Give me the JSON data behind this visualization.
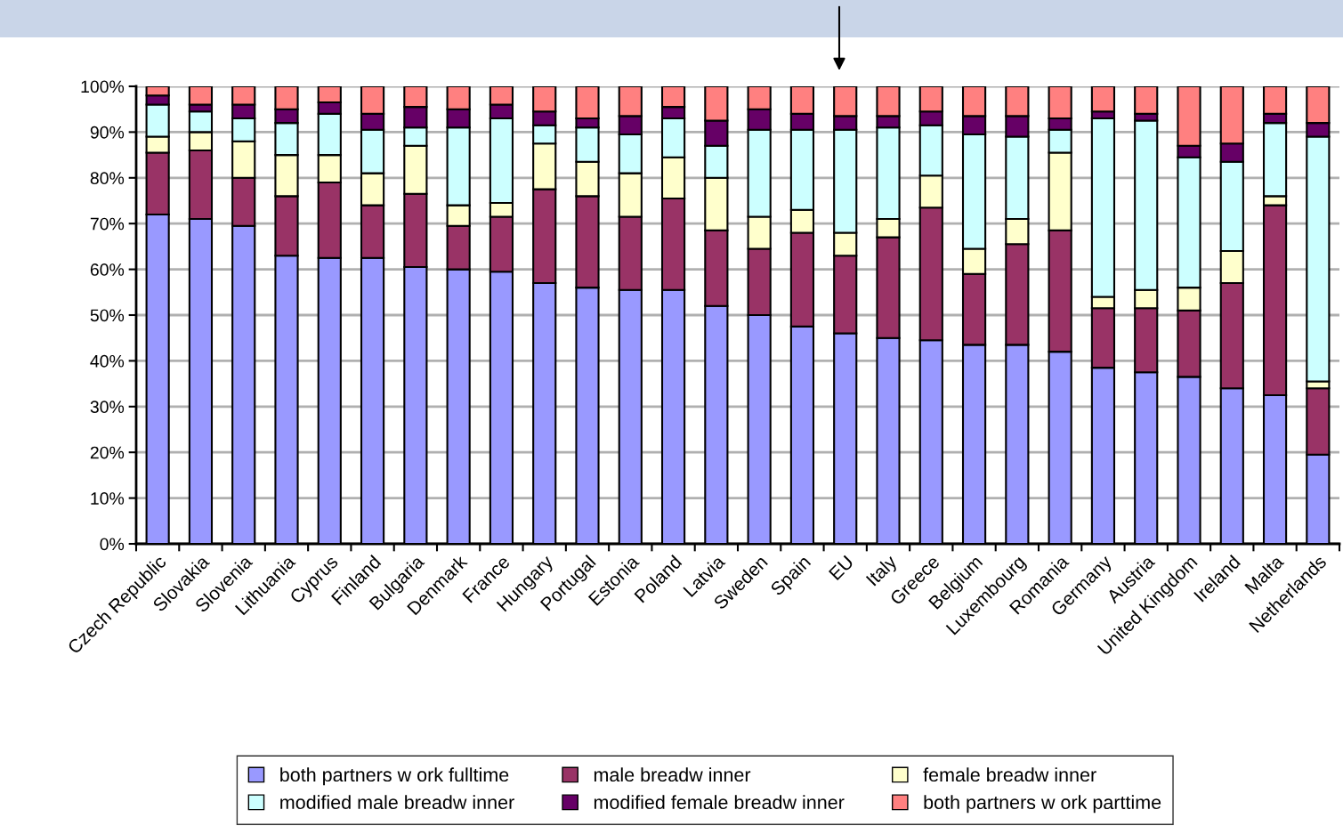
{
  "chart_data": {
    "type": "bar",
    "stacked": true,
    "categories": [
      "Czech Republic",
      "Slovakia",
      "Slovenia",
      "Lithuania",
      "Cyprus",
      "Finland",
      "Bulgaria",
      "Denmark",
      "France",
      "Hungary",
      "Portugal",
      "Estonia",
      "Poland",
      "Latvia",
      "Sweden",
      "Spain",
      "EU",
      "Italy",
      "Greece",
      "Belgium",
      "Luxembourg",
      "Romania",
      "Germany",
      "Austria",
      "United Kingdom",
      "Ireland",
      "Malta",
      "Netherlands"
    ],
    "series": [
      {
        "name": "both partners w ork fulltime",
        "color": "#9999ff",
        "values": [
          72,
          71,
          69.5,
          63,
          62.5,
          62.5,
          60.5,
          60,
          59.5,
          57,
          56,
          55.5,
          55.5,
          52,
          50,
          47.5,
          46,
          45,
          44.5,
          43.5,
          43.5,
          42,
          38.5,
          37.5,
          36.5,
          34,
          32.5,
          19.5
        ]
      },
      {
        "name": "male breadw inner",
        "color": "#993366",
        "values": [
          13.5,
          15,
          10.5,
          13,
          16.5,
          11.5,
          16,
          9.5,
          12,
          20.5,
          20,
          16,
          20,
          16.5,
          14.5,
          20.5,
          17,
          22,
          29,
          15.5,
          22,
          26.5,
          13,
          14,
          14.5,
          23,
          41.5,
          14.5
        ]
      },
      {
        "name": "female breadw inner",
        "color": "#ffffcc",
        "values": [
          3.5,
          4,
          8,
          9,
          6,
          7,
          10.5,
          4.5,
          3,
          10,
          7.5,
          9.5,
          9,
          11.5,
          7,
          5,
          5,
          4,
          7,
          5.5,
          5.5,
          17,
          2.5,
          4,
          5,
          7,
          2,
          1.5
        ]
      },
      {
        "name": "modified male breadw inner",
        "color": "#ccffff",
        "values": [
          7,
          4.5,
          5,
          7,
          9,
          9.5,
          4,
          17,
          18.5,
          4,
          7.5,
          8.5,
          8.5,
          7,
          19,
          17.5,
          22.5,
          20,
          11,
          25,
          18,
          5,
          39,
          37,
          28.5,
          19.5,
          16,
          53.5
        ]
      },
      {
        "name": "modified female breadw inner",
        "color": "#660066",
        "values": [
          2,
          1.5,
          3,
          3,
          2.5,
          3.5,
          4.5,
          4,
          3,
          3,
          2,
          4,
          2.5,
          5.5,
          4.5,
          3.5,
          3,
          2.5,
          3,
          4,
          4.5,
          2.5,
          1.5,
          1.5,
          2.5,
          4,
          2,
          3
        ]
      },
      {
        "name": "both partners w ork parttime",
        "color": "#ff8080",
        "values": [
          2,
          4,
          4,
          5,
          3.5,
          6,
          4.5,
          5,
          4,
          5.5,
          7,
          6.5,
          4.5,
          7.5,
          5,
          6,
          6.5,
          6.5,
          5.5,
          6.5,
          6.5,
          7,
          5.5,
          6,
          13,
          12.5,
          6,
          8
        ]
      }
    ],
    "ylim": [
      0,
      100
    ],
    "yticks": [
      {
        "value": 0,
        "label": "0%"
      },
      {
        "value": 10,
        "label": "10%"
      },
      {
        "value": 20,
        "label": "20%"
      },
      {
        "value": 30,
        "label": "30%"
      },
      {
        "value": 40,
        "label": "40%"
      },
      {
        "value": 50,
        "label": "50%"
      },
      {
        "value": 60,
        "label": "60%"
      },
      {
        "value": 70,
        "label": "70%"
      },
      {
        "value": 80,
        "label": "80%"
      },
      {
        "value": 90,
        "label": "90%"
      },
      {
        "value": 100,
        "label": "100%"
      }
    ],
    "grid": "y",
    "legend": "bottom"
  }
}
